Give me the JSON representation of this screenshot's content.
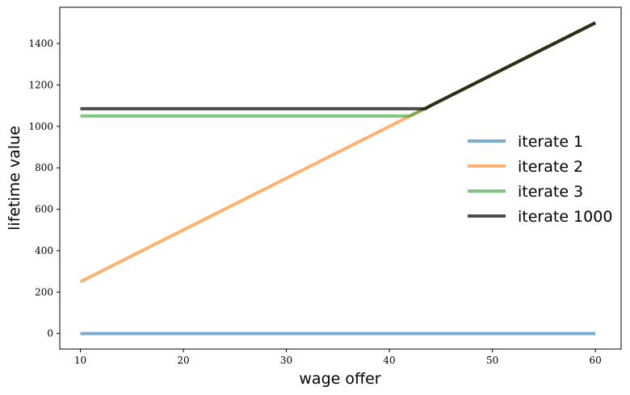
{
  "chart_data": {
    "type": "line",
    "title": "",
    "xlabel": "wage offer",
    "ylabel": "lifetime value",
    "xlim": [
      8,
      62.5
    ],
    "ylim": [
      -75,
      1575
    ],
    "xticks": [
      10,
      20,
      30,
      40,
      50,
      60
    ],
    "yticks": [
      0,
      200,
      400,
      600,
      800,
      1000,
      1200,
      1400
    ],
    "grid": false,
    "legend_position": "center-right",
    "series": [
      {
        "name": "iterate 1",
        "color": "#1f77b4",
        "x": [
          10,
          60
        ],
        "y": [
          0,
          0
        ]
      },
      {
        "name": "iterate 2",
        "color": "#ff7f0e",
        "x": [
          10,
          42,
          60
        ],
        "y": [
          250,
          1050,
          1500
        ]
      },
      {
        "name": "iterate 3",
        "color": "#2ca02c",
        "x": [
          10,
          42,
          43,
          60
        ],
        "y": [
          1050,
          1050,
          1075,
          1500
        ]
      },
      {
        "name": "iterate 1000",
        "color": "#000000",
        "x": [
          10,
          43.5,
          44,
          60
        ],
        "y": [
          1085,
          1085,
          1100,
          1500
        ]
      }
    ]
  }
}
